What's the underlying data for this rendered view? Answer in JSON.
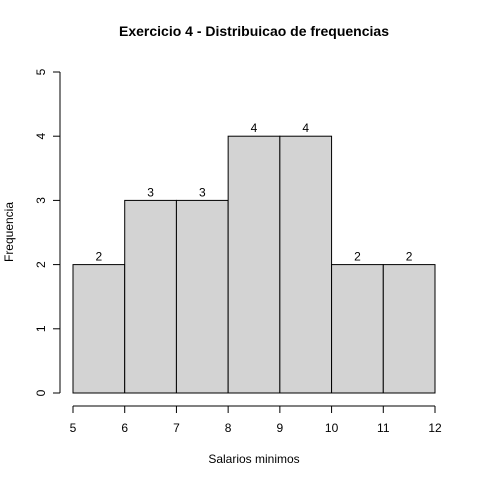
{
  "chart_data": {
    "type": "bar",
    "title": "Exercicio 4 - Distribuicao de frequencias",
    "xlabel": "Salarios minimos",
    "ylabel": "Frequencia",
    "bins": [
      [
        5,
        6
      ],
      [
        6,
        7
      ],
      [
        7,
        8
      ],
      [
        8,
        9
      ],
      [
        9,
        10
      ],
      [
        10,
        11
      ],
      [
        11,
        12
      ]
    ],
    "values": [
      2,
      3,
      3,
      4,
      4,
      2,
      2
    ],
    "xlim": [
      5,
      12
    ],
    "ylim": [
      0,
      5
    ],
    "xticks": [
      5,
      6,
      7,
      8,
      9,
      10,
      11,
      12
    ],
    "yticks": [
      0,
      1,
      2,
      3,
      4,
      5
    ],
    "grid": false,
    "colors": {
      "bar_fill": "#d3d3d3",
      "bar_stroke": "#000000"
    }
  }
}
